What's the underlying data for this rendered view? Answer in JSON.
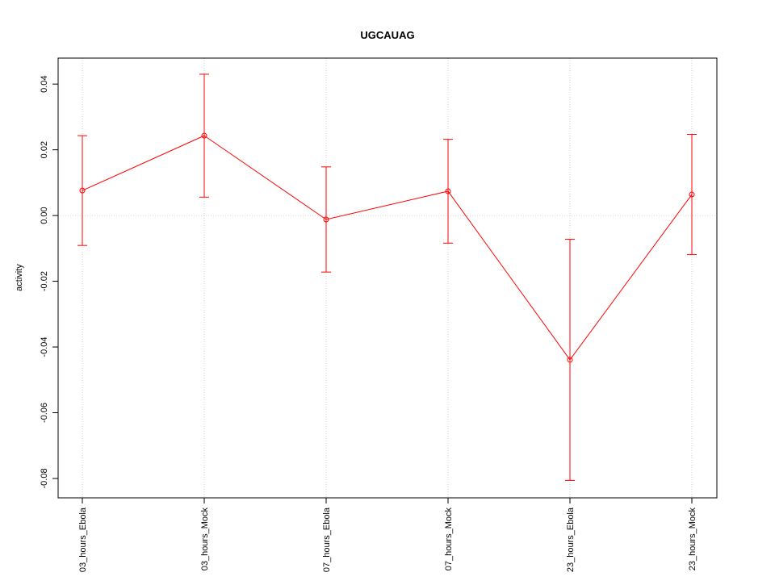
{
  "chart_data": {
    "type": "errorbar-line",
    "title": "UGCAUAG",
    "y_label": "activity",
    "categories": [
      "03_hours_Ebola",
      "03_hours_Mock",
      "07_hours_Ebola",
      "07_hours_Mock",
      "23_hours_Ebola",
      "23_hours_Mock"
    ],
    "series": [
      {
        "name": "activity",
        "color": "#ff0000",
        "values": [
          0.0076,
          0.0243,
          -0.0012,
          0.0074,
          -0.0439,
          0.0064
        ],
        "errors": [
          0.0167,
          0.0187,
          0.016,
          0.0158,
          0.0367,
          0.0183
        ]
      }
    ],
    "ylim": [
      -0.0859,
      0.0479
    ],
    "yticks": [
      {
        "value": -0.08,
        "label": "-0.08"
      },
      {
        "value": -0.06,
        "label": "-0.06"
      },
      {
        "value": -0.04,
        "label": "-0.04"
      },
      {
        "value": -0.02,
        "label": "-0.02"
      },
      {
        "value": 0,
        "label": "0.00"
      },
      {
        "value": 0.02,
        "label": "0.02"
      },
      {
        "value": 0.04,
        "label": "0.04"
      }
    ],
    "reference_line": 0,
    "grid": true
  }
}
